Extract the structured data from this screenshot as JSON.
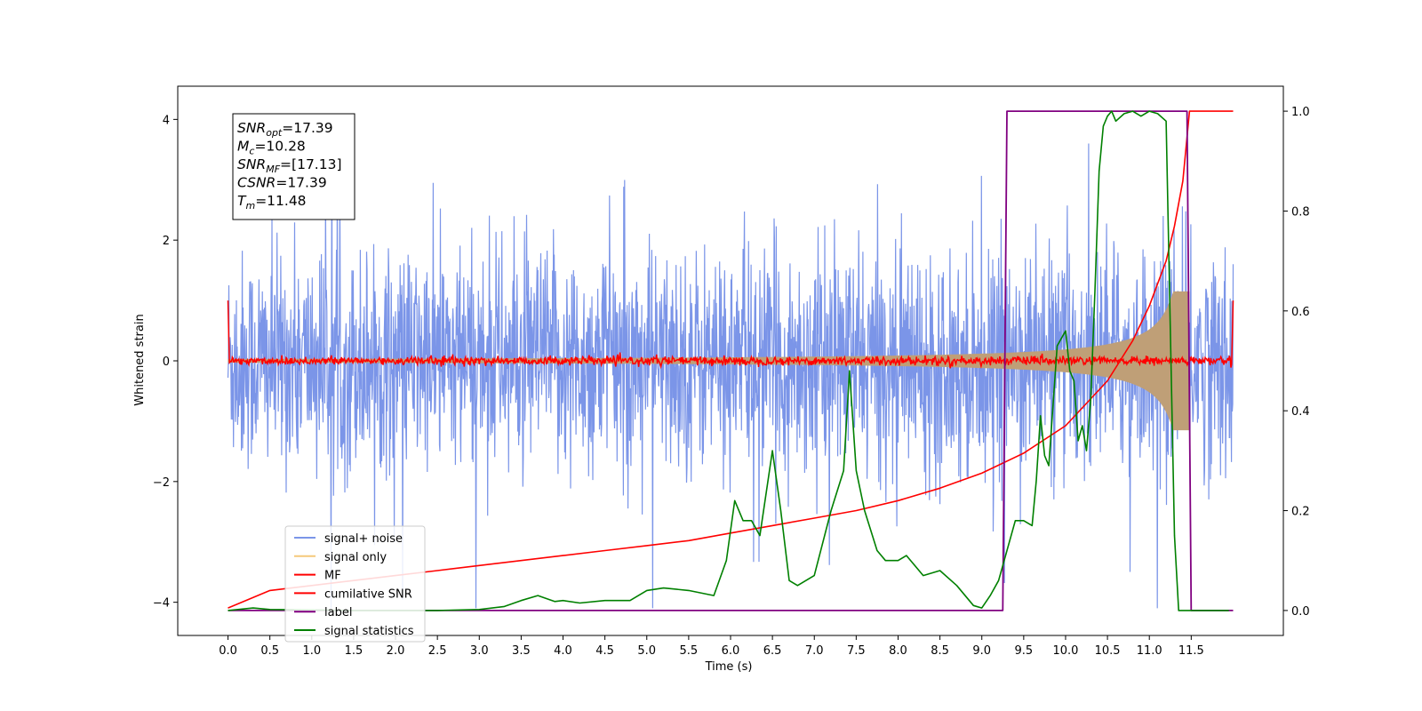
{
  "chart_data": {
    "type": "line",
    "xlabel": "Time (s)",
    "ylabel": "Whitened strain",
    "xlim": [
      -0.6,
      12.6
    ],
    "ylim": [
      -4.55,
      4.55
    ],
    "ylim_right": [
      -0.05,
      1.05
    ],
    "x_ticks": [
      0.0,
      0.5,
      1.0,
      1.5,
      2.0,
      2.5,
      3.0,
      3.5,
      4.0,
      4.5,
      5.0,
      5.5,
      6.0,
      6.5,
      7.0,
      7.5,
      8.0,
      8.5,
      9.0,
      9.5,
      10.0,
      10.5,
      11.0,
      11.5
    ],
    "x_tick_labels": [
      "0.0",
      "0.5",
      "1.0",
      "1.5",
      "2.0",
      "2.5",
      "3.0",
      "3.5",
      "4.0",
      "4.5",
      "5.0",
      "5.5",
      "6.0",
      "6.5",
      "7.0",
      "7.5",
      "8.0",
      "8.5",
      "9.0",
      "9.5",
      "10.0",
      "10.5",
      "11.0",
      "11.5"
    ],
    "y_ticks_left": [
      -4,
      -2,
      0,
      2,
      4
    ],
    "y_tick_labels_left": [
      "−4",
      "−2",
      "0",
      "2",
      "4"
    ],
    "y_ticks_right": [
      0.0,
      0.2,
      0.4,
      0.6,
      0.8,
      1.0
    ],
    "y_tick_labels_right": [
      "0.0",
      "0.2",
      "0.4",
      "0.6",
      "0.8",
      "1.0"
    ],
    "grid": false,
    "legend_position": "lower-left",
    "annotation_lines": [
      {
        "sym": "SNR",
        "sub": "opt",
        "rest": "=17.39"
      },
      {
        "sym": "M",
        "sub": "c",
        "rest": "=10.28"
      },
      {
        "sym": "SNR",
        "sub": "MF",
        "rest": "=[17.13]"
      },
      {
        "sym": "CSNR",
        "sub": "",
        "rest": "=17.39"
      },
      {
        "sym": "T",
        "sub": "m",
        "rest": "=11.48"
      }
    ],
    "series": [
      {
        "name": "signal+ noise",
        "color": "#7b95e8",
        "axis": "left",
        "description_values": {
          "x_range": [
            0.0,
            12.0
          ],
          "typical_amplitude": 1.5,
          "peak_max": 3.6,
          "peak_min": -4.1
        }
      },
      {
        "name": "signal only",
        "color": "#f5c97a",
        "axis": "left",
        "chirp": {
          "x_range": [
            0.0,
            11.48
          ],
          "envelope_start": 0.03,
          "envelope_peak": 1.15,
          "merger_time": 11.48
        }
      },
      {
        "name": "MF",
        "color": "#ff0000",
        "axis": "left",
        "description_values": {
          "x_range": [
            0.0,
            12.0
          ],
          "baseline": 0.0,
          "noise_amplitude": 0.08,
          "edge_value": 1.0
        }
      },
      {
        "name": "cumilative SNR",
        "color": "#ff0000",
        "axis": "right",
        "x": [
          0.0,
          0.5,
          1.0,
          1.5,
          2.0,
          2.5,
          3.0,
          3.5,
          4.0,
          4.5,
          5.0,
          5.5,
          6.0,
          6.5,
          7.0,
          7.5,
          8.0,
          8.5,
          9.0,
          9.5,
          10.0,
          10.5,
          10.8,
          11.0,
          11.2,
          11.3,
          11.4,
          11.48,
          12.0
        ],
        "y": [
          0.005,
          0.04,
          0.05,
          0.06,
          0.07,
          0.08,
          0.09,
          0.1,
          0.11,
          0.12,
          0.13,
          0.14,
          0.155,
          0.17,
          0.185,
          0.2,
          0.22,
          0.245,
          0.275,
          0.315,
          0.37,
          0.46,
          0.54,
          0.61,
          0.7,
          0.77,
          0.86,
          1.0,
          1.0
        ]
      },
      {
        "name": "label",
        "color": "#800080",
        "axis": "right",
        "x": [
          0.0,
          9.25,
          9.3,
          11.45,
          11.5,
          12.0
        ],
        "y": [
          0.0,
          0.0,
          1.0,
          1.0,
          0.0,
          0.0
        ]
      },
      {
        "name": "signal statistics",
        "color": "#008000",
        "axis": "right",
        "x": [
          0.0,
          0.3,
          0.5,
          1.0,
          1.5,
          2.0,
          2.5,
          3.0,
          3.3,
          3.5,
          3.7,
          3.9,
          4.0,
          4.2,
          4.5,
          4.8,
          5.0,
          5.2,
          5.5,
          5.8,
          5.95,
          6.05,
          6.15,
          6.25,
          6.35,
          6.5,
          6.6,
          6.7,
          6.8,
          7.0,
          7.2,
          7.35,
          7.42,
          7.5,
          7.6,
          7.75,
          7.85,
          8.0,
          8.1,
          8.3,
          8.5,
          8.7,
          8.9,
          9.0,
          9.1,
          9.2,
          9.3,
          9.4,
          9.5,
          9.6,
          9.65,
          9.7,
          9.75,
          9.8,
          9.9,
          10.0,
          10.05,
          10.1,
          10.15,
          10.2,
          10.25,
          10.3,
          10.35,
          10.4,
          10.45,
          10.5,
          10.55,
          10.6,
          10.7,
          10.8,
          10.9,
          11.0,
          11.1,
          11.2,
          11.3,
          11.35,
          11.4,
          11.45,
          11.5,
          11.6,
          11.8,
          11.95
        ],
        "y": [
          0.0,
          0.005,
          0.002,
          0.001,
          0.0,
          0.0,
          0.0,
          0.002,
          0.008,
          0.02,
          0.03,
          0.018,
          0.02,
          0.015,
          0.02,
          0.02,
          0.04,
          0.045,
          0.04,
          0.03,
          0.1,
          0.22,
          0.18,
          0.18,
          0.15,
          0.32,
          0.2,
          0.06,
          0.05,
          0.07,
          0.2,
          0.28,
          0.48,
          0.28,
          0.2,
          0.12,
          0.1,
          0.1,
          0.11,
          0.07,
          0.08,
          0.05,
          0.01,
          0.005,
          0.03,
          0.06,
          0.12,
          0.18,
          0.18,
          0.17,
          0.26,
          0.39,
          0.31,
          0.29,
          0.53,
          0.56,
          0.48,
          0.46,
          0.34,
          0.37,
          0.32,
          0.42,
          0.64,
          0.88,
          0.97,
          0.99,
          1.0,
          0.98,
          0.995,
          1.0,
          0.99,
          1.0,
          0.995,
          0.98,
          0.15,
          0.0,
          0.0,
          0.0,
          0.0,
          0.0,
          0.0,
          0.0
        ]
      }
    ]
  }
}
